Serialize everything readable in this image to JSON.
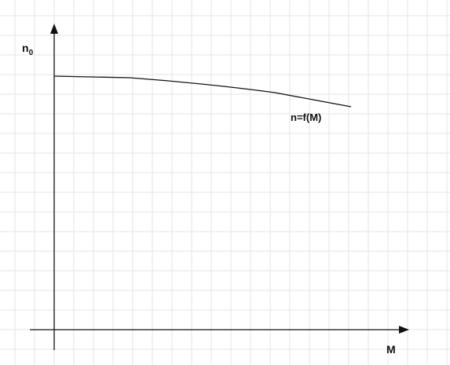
{
  "diagram": {
    "y_axis_label": "n",
    "y_axis_label_subscript": "0",
    "x_axis_label": "M",
    "curve_label": "n=f(M)",
    "colors": {
      "background": "#ffffff",
      "grid": "#e6e6e6",
      "axes": "#111111",
      "curve": "#111111",
      "text": "#111111"
    },
    "icons": [
      "arrow-up-icon",
      "arrow-right-icon"
    ]
  }
}
